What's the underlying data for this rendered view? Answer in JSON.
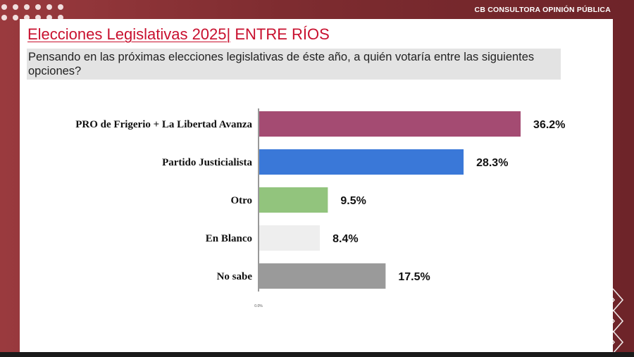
{
  "brand": "CB CONSULTORA OPINIÓN PÚBLICA",
  "header": {
    "title_main": "Elecciones Legislativas 2025|",
    "title_region": " ENTRE RÍOS",
    "subtitle": "Pensando en las próximas elecciones legislativas de éste año, a quién votaría entre las siguientes opciones?"
  },
  "chart_data": {
    "type": "bar",
    "orientation": "horizontal",
    "title": "Elecciones Legislativas 2025| ENTRE RÍOS",
    "categories": [
      "PRO de Frigerio + La Libertad Avanza",
      "Partido Justicialista",
      "Otro",
      "En Blanco",
      "No sabe"
    ],
    "values": [
      36.2,
      28.3,
      9.5,
      8.4,
      17.5
    ],
    "value_labels": [
      "36.2%",
      "28.3%",
      "9.5%",
      "8.4%",
      "17.5%"
    ],
    "colors": [
      "#a44b72",
      "#3a78d8",
      "#92c47d",
      "#eeeeee",
      "#9a9a9a"
    ],
    "xlim": [
      0,
      40
    ],
    "x_tick_label": "0.0%",
    "xlabel": "",
    "ylabel": "",
    "grid": false,
    "legend": "none"
  }
}
